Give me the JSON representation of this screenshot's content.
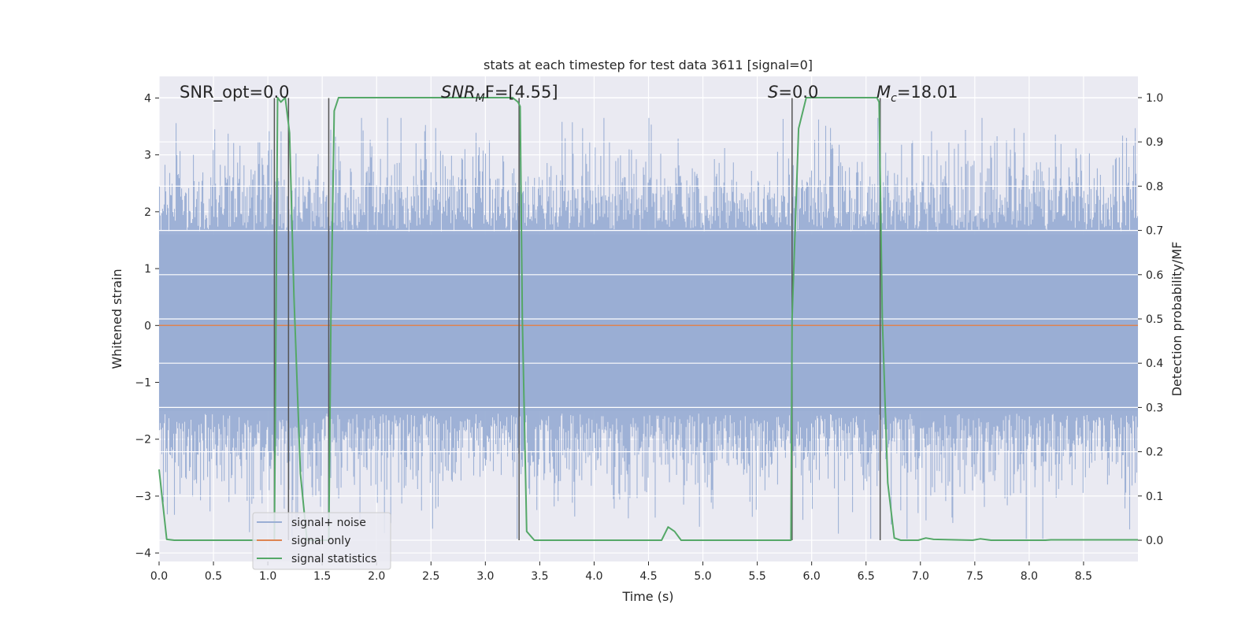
{
  "chart_data": {
    "type": "line",
    "title": "stats at each timestep for test data 3611 [signal=0]",
    "xlabel": "Time (s)",
    "ylabel": "Whitened strain",
    "ylabel_right": "Detection probability/MF",
    "xlim": [
      0.0,
      9.0
    ],
    "ylim": [
      -4.15,
      4.38
    ],
    "ylim_right": [
      -0.048,
      1.048
    ],
    "xticks": [
      0.0,
      0.5,
      1.0,
      1.5,
      2.0,
      2.5,
      3.0,
      3.5,
      4.0,
      4.5,
      5.0,
      5.5,
      6.0,
      6.5,
      7.0,
      7.5,
      8.0,
      8.5
    ],
    "xtick_labels": [
      "0.0",
      "0.5",
      "1.0",
      "1.5",
      "2.0",
      "2.5",
      "3.0",
      "3.5",
      "4.0",
      "4.5",
      "5.0",
      "5.5",
      "6.0",
      "6.5",
      "7.0",
      "7.5",
      "8.0",
      "8.5"
    ],
    "yticks": [
      4,
      3,
      2,
      1,
      0,
      -1,
      -2,
      -3,
      -4
    ],
    "ytick_labels": [
      "4",
      "3",
      "2",
      "1",
      "0",
      "−1",
      "−2",
      "−3",
      "−4"
    ],
    "yticks_right": [
      1.0,
      0.9,
      0.8,
      0.7,
      0.6,
      0.5,
      0.4,
      0.3,
      0.2,
      0.1,
      0.0
    ],
    "ytick_labels_right": [
      "1.0",
      "0.9",
      "0.8",
      "0.7",
      "0.6",
      "0.5",
      "0.4",
      "0.3",
      "0.2",
      "0.1",
      "0.0"
    ],
    "grid": true,
    "annotations": {
      "snr_opt": "SNR_opt=0.0",
      "snr_mf_label": "SNR",
      "snr_mf_sub": "M",
      "snr_mf_rest": "F=[4.55]",
      "s_label": "S",
      "s_rest": "=0.0",
      "mc_label": "M",
      "mc_sub": "c",
      "mc_rest": "=18.01"
    },
    "series": [
      {
        "name": "signal+ noise",
        "color": "#9aaed4",
        "description": "whitened strain noise, sampled densely across 0–9 s",
        "approx_range": [
          -3.8,
          3.7
        ]
      },
      {
        "name": "signal only",
        "color": "#dd8452",
        "x": [
          0.0,
          9.0
        ],
        "y": [
          0.0,
          0.0
        ]
      },
      {
        "name": "signal statistics",
        "color": "#55a868",
        "axis": "right",
        "x": [
          0.0,
          0.07,
          0.14,
          1.03,
          1.06,
          1.09,
          1.12,
          1.16,
          1.2,
          1.24,
          1.3,
          1.36,
          1.42,
          1.52,
          1.56,
          1.58,
          1.61,
          1.65,
          3.25,
          3.3,
          3.32,
          3.34,
          3.38,
          3.45,
          4.62,
          4.68,
          4.74,
          4.8,
          5.81,
          5.82,
          5.88,
          5.95,
          6.6,
          6.62,
          6.65,
          6.7,
          6.76,
          6.82,
          6.98,
          7.05,
          7.12,
          7.48,
          7.55,
          7.65,
          8.15,
          8.2,
          9.0
        ],
        "y": [
          0.16,
          0.002,
          0.0,
          0.0,
          0.0,
          1.0,
          0.99,
          1.0,
          0.92,
          0.55,
          0.15,
          0.0,
          0.0,
          0.0,
          0.0,
          0.5,
          0.97,
          1.0,
          1.0,
          0.99,
          0.98,
          0.5,
          0.02,
          0.0,
          0.0,
          0.03,
          0.02,
          0.0,
          0.0,
          0.5,
          0.93,
          1.0,
          1.0,
          0.99,
          0.5,
          0.13,
          0.005,
          0.0,
          0.0,
          0.005,
          0.002,
          0.0,
          0.003,
          0.0,
          0.0,
          0.001,
          0.001
        ]
      }
    ],
    "vertical_markers": {
      "color": "#555555",
      "x": [
        1.06,
        1.19,
        1.56,
        3.31,
        5.82,
        6.63
      ]
    },
    "legend": {
      "location": "lower-left",
      "entries": [
        "signal+ noise",
        "signal only",
        "signal statistics"
      ]
    }
  }
}
